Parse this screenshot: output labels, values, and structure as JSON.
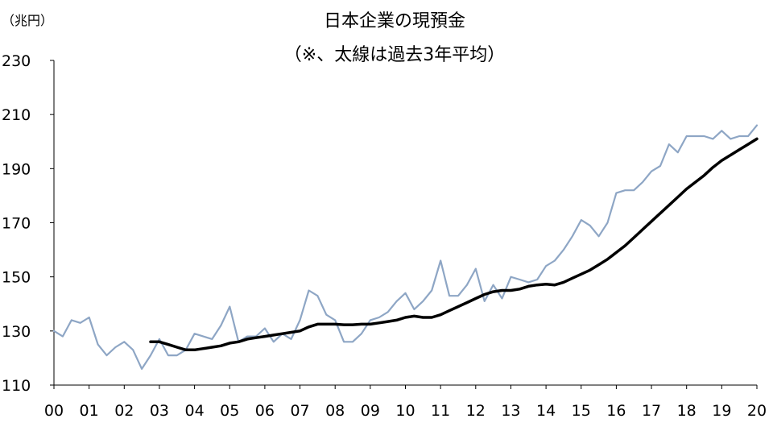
{
  "chart_data": {
    "type": "line",
    "title": "日本企業の現預金",
    "subtitle": "（※、太線は過去3年平均）",
    "unit_label": "（兆円）",
    "x_tick_labels": [
      "00",
      "01",
      "02",
      "03",
      "04",
      "05",
      "06",
      "07",
      "08",
      "09",
      "10",
      "11",
      "12",
      "13",
      "14",
      "15",
      "16",
      "17",
      "18",
      "19",
      "20"
    ],
    "y_ticks": [
      110,
      130,
      150,
      170,
      190,
      210,
      230
    ],
    "xlim": [
      2000.0,
      2020.0
    ],
    "ylim": [
      110,
      230
    ],
    "grid": false,
    "colors": {
      "quarterly": "#8ea6c5",
      "average": "#000000",
      "axis": "#000000"
    },
    "series": [
      {
        "key": "quarterly",
        "x": [
          2000.0,
          2000.25,
          2000.5,
          2000.75,
          2001.0,
          2001.25,
          2001.5,
          2001.75,
          2002.0,
          2002.25,
          2002.5,
          2002.75,
          2003.0,
          2003.25,
          2003.5,
          2003.75,
          2004.0,
          2004.25,
          2004.5,
          2004.75,
          2005.0,
          2005.25,
          2005.5,
          2005.75,
          2006.0,
          2006.25,
          2006.5,
          2006.75,
          2007.0,
          2007.25,
          2007.5,
          2007.75,
          2008.0,
          2008.25,
          2008.5,
          2008.75,
          2009.0,
          2009.25,
          2009.5,
          2009.75,
          2010.0,
          2010.25,
          2010.5,
          2010.75,
          2011.0,
          2011.25,
          2011.5,
          2011.75,
          2012.0,
          2012.25,
          2012.5,
          2012.75,
          2013.0,
          2013.25,
          2013.5,
          2013.75,
          2014.0,
          2014.25,
          2014.5,
          2014.75,
          2015.0,
          2015.25,
          2015.5,
          2015.75,
          2016.0,
          2016.25,
          2016.5,
          2016.75,
          2017.0,
          2017.25,
          2017.5,
          2017.75,
          2018.0,
          2018.25,
          2018.5,
          2018.75,
          2019.0,
          2019.25,
          2019.5,
          2019.75,
          2020.0
        ],
        "y": [
          130,
          128,
          134,
          133,
          135,
          125,
          121,
          124,
          126,
          123,
          116,
          121,
          127,
          121,
          121,
          123,
          129,
          128,
          127,
          132,
          139,
          126,
          128,
          128,
          131,
          126,
          129,
          127,
          134,
          145,
          143,
          136,
          134,
          126,
          126,
          129,
          134,
          135,
          137,
          141,
          144,
          138,
          141,
          145,
          156,
          143,
          143,
          147,
          153,
          141,
          147,
          142,
          150,
          149,
          148,
          149,
          154,
          156,
          160,
          165,
          171,
          169,
          165,
          170,
          181,
          182,
          182,
          185,
          189,
          191,
          199,
          196,
          202,
          202,
          202,
          201,
          204,
          201,
          202,
          202,
          206
        ]
      },
      {
        "key": "average",
        "x": [
          2002.75,
          2003.0,
          2003.25,
          2003.5,
          2003.75,
          2004.0,
          2004.25,
          2004.5,
          2004.75,
          2005.0,
          2005.25,
          2005.5,
          2005.75,
          2006.0,
          2006.25,
          2006.5,
          2006.75,
          2007.0,
          2007.25,
          2007.5,
          2007.75,
          2008.0,
          2008.25,
          2008.5,
          2008.75,
          2009.0,
          2009.25,
          2009.5,
          2009.75,
          2010.0,
          2010.25,
          2010.5,
          2010.75,
          2011.0,
          2011.25,
          2011.5,
          2011.75,
          2012.0,
          2012.25,
          2012.5,
          2012.75,
          2013.0,
          2013.25,
          2013.5,
          2013.75,
          2014.0,
          2014.25,
          2014.5,
          2014.75,
          2015.0,
          2015.25,
          2015.5,
          2015.75,
          2016.0,
          2016.25,
          2016.5,
          2016.75,
          2017.0,
          2017.25,
          2017.5,
          2017.75,
          2018.0,
          2018.25,
          2018.5,
          2018.75,
          2019.0,
          2019.25,
          2019.5,
          2019.75,
          2020.0
        ],
        "y": [
          126,
          126,
          125,
          124,
          123,
          123,
          123.5,
          124,
          124.5,
          125.5,
          126,
          127,
          127.5,
          128,
          128.5,
          129,
          129.5,
          130,
          131.5,
          132.5,
          132.5,
          132.5,
          132.3,
          132.3,
          132.5,
          132.5,
          133,
          133.5,
          134,
          135,
          135.5,
          135,
          135,
          136,
          137.5,
          139,
          140.5,
          142,
          143.5,
          144.5,
          145,
          145,
          145.5,
          146.5,
          147,
          147.3,
          147,
          148,
          149.5,
          151,
          152.5,
          154.5,
          156.5,
          159,
          161.5,
          164.5,
          167.5,
          170.5,
          173.5,
          176.5,
          179.5,
          182.5,
          185,
          187.5,
          190.5,
          193,
          195,
          197,
          199,
          201
        ]
      }
    ]
  }
}
